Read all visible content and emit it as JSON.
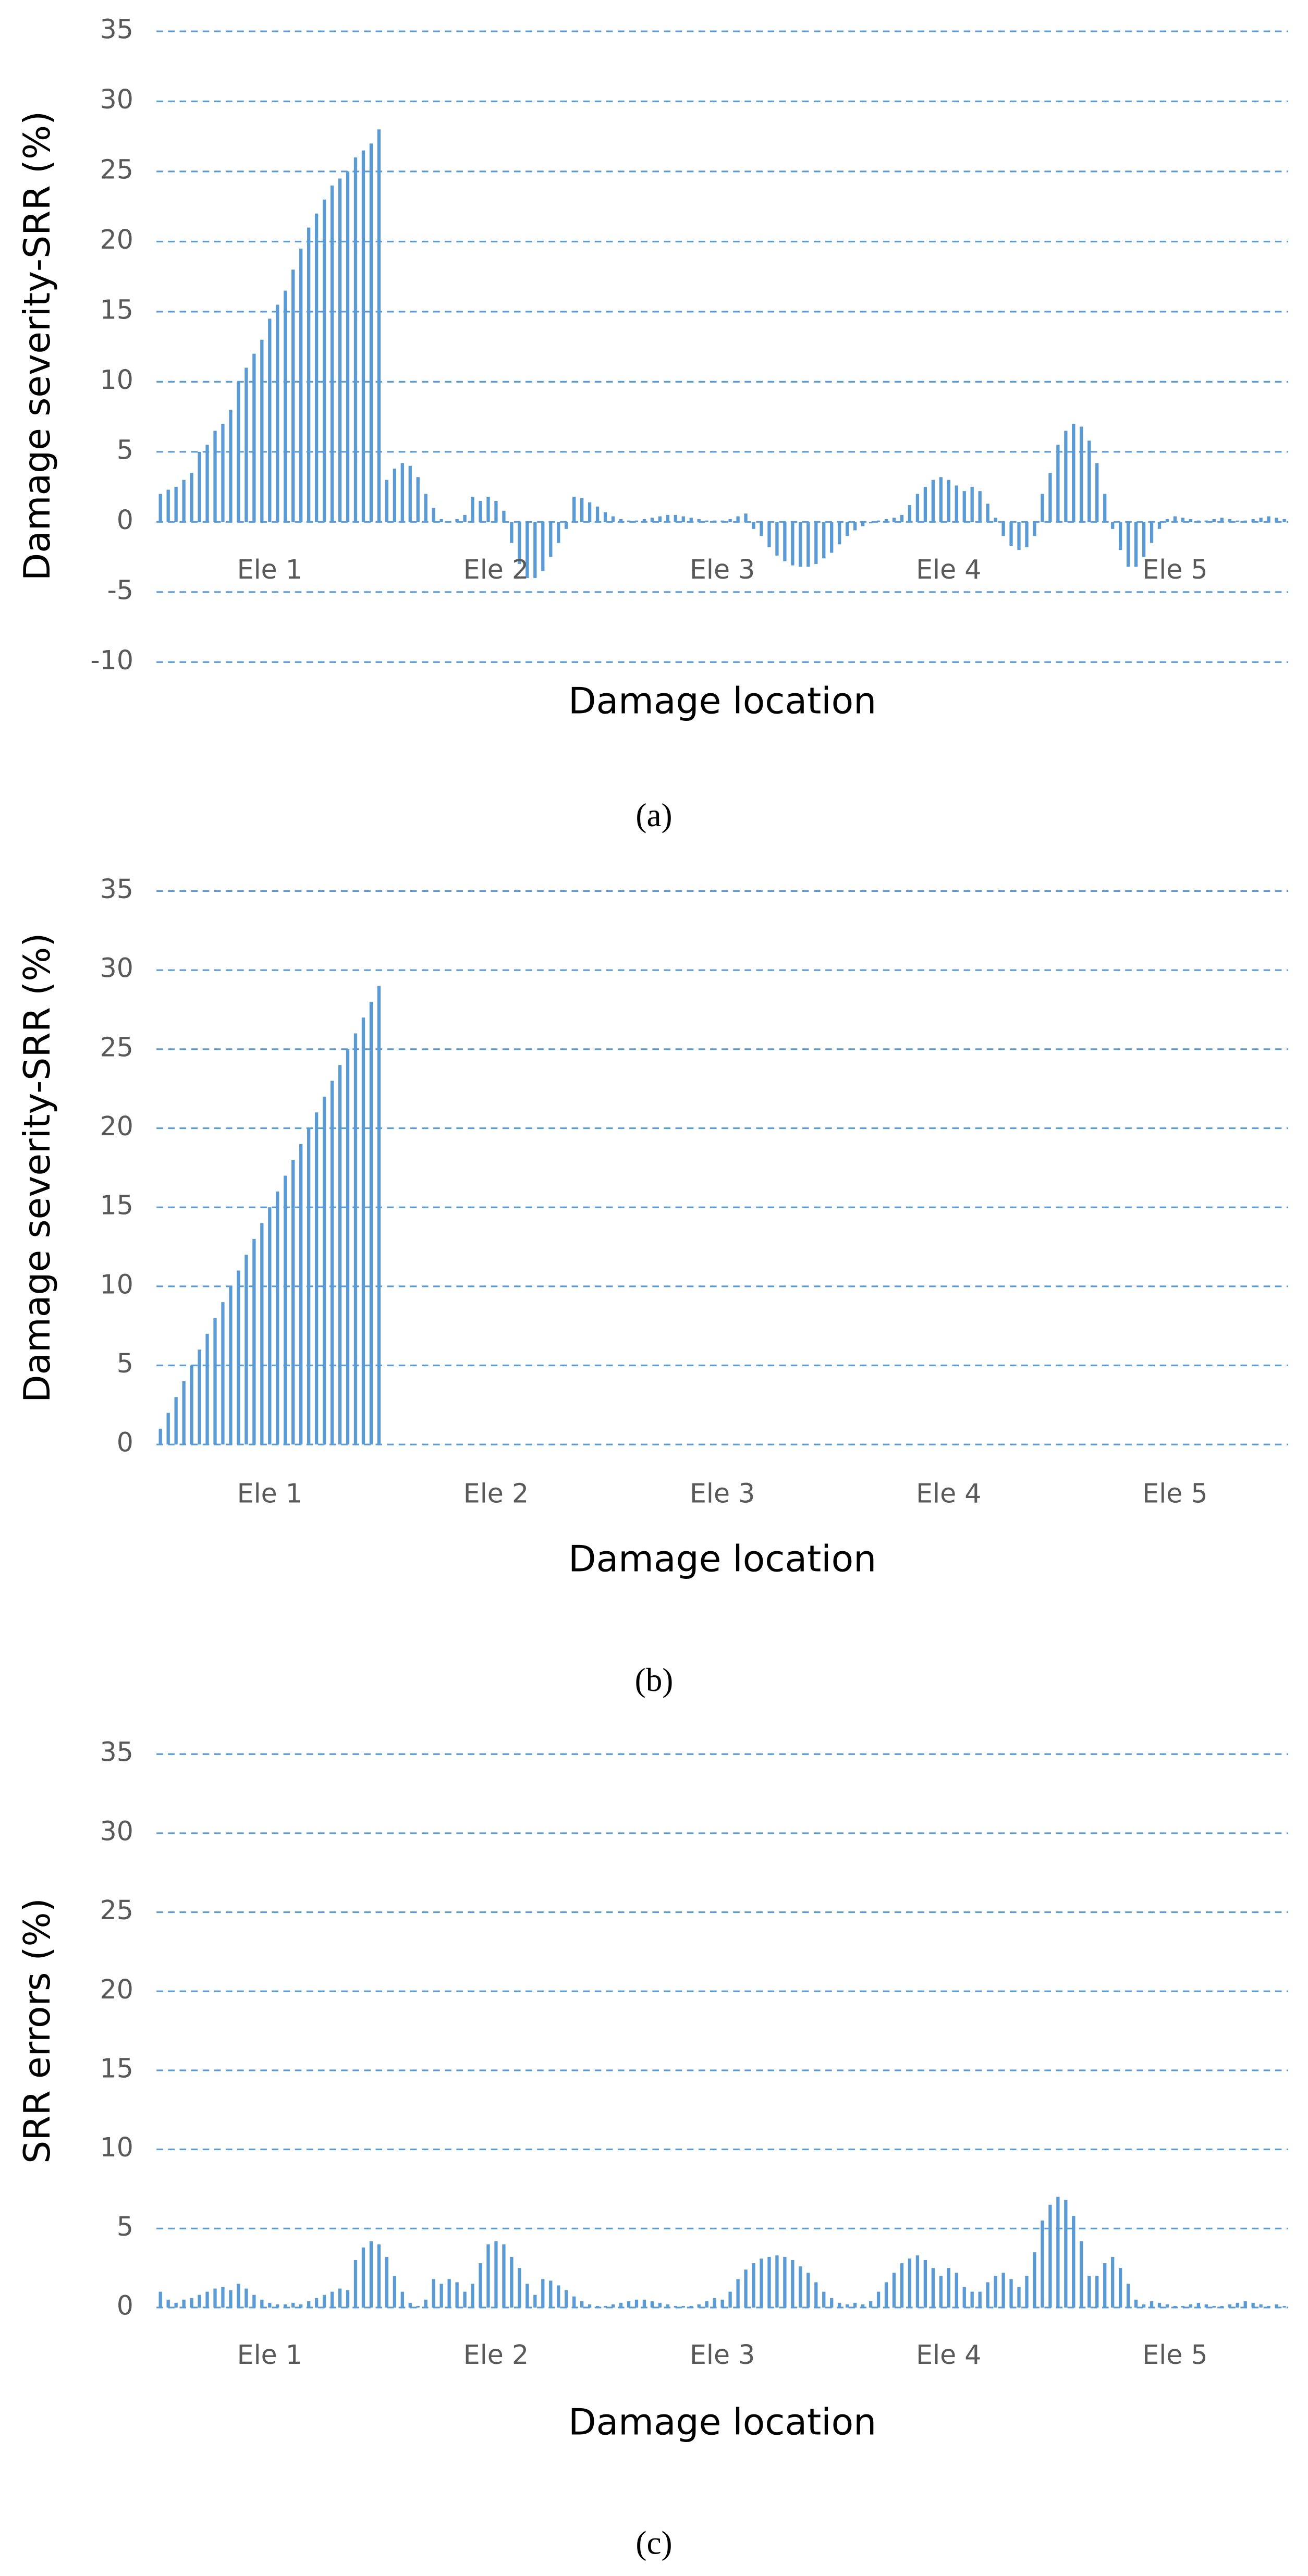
{
  "chart_data": [
    {
      "type": "bar",
      "caption": "(a)",
      "x_label": "Damage location",
      "y_label": "Damage severity-SRR (%)",
      "color": "#5b9bd5",
      "grid": true,
      "xlim": [
        0.5,
        145.5
      ],
      "xticks": [
        {
          "value": 15,
          "label": "Ele 1"
        },
        {
          "value": 44,
          "label": "Ele 2"
        },
        {
          "value": 73,
          "label": "Ele 3"
        },
        {
          "value": 102,
          "label": "Ele 4"
        },
        {
          "value": 131,
          "label": "Ele 5"
        }
      ],
      "ylim": [
        -10,
        35
      ],
      "yticks": [
        -10,
        -5,
        0,
        5,
        10,
        15,
        20,
        25,
        30,
        35
      ],
      "x": [
        1,
        2,
        3,
        4,
        5,
        6,
        7,
        8,
        9,
        10,
        11,
        12,
        13,
        14,
        15,
        16,
        17,
        18,
        19,
        20,
        21,
        22,
        23,
        24,
        25,
        26,
        27,
        28,
        29,
        30,
        31,
        32,
        33,
        34,
        35,
        36,
        37,
        38,
        39,
        40,
        41,
        42,
        43,
        44,
        45,
        46,
        47,
        48,
        49,
        50,
        51,
        52,
        53,
        54,
        55,
        56,
        57,
        58,
        59,
        60,
        61,
        62,
        63,
        64,
        65,
        66,
        67,
        68,
        69,
        70,
        71,
        72,
        73,
        74,
        75,
        76,
        77,
        78,
        79,
        80,
        81,
        82,
        83,
        84,
        85,
        86,
        87,
        88,
        89,
        90,
        91,
        92,
        93,
        94,
        95,
        96,
        97,
        98,
        99,
        100,
        101,
        102,
        103,
        104,
        105,
        106,
        107,
        108,
        109,
        110,
        111,
        112,
        113,
        114,
        115,
        116,
        117,
        118,
        119,
        120,
        121,
        122,
        123,
        124,
        125,
        126,
        127,
        128,
        129,
        130,
        131,
        132,
        133,
        134,
        135,
        136,
        137,
        138,
        139,
        140,
        141,
        142,
        143,
        144,
        145
      ],
      "values": [
        2,
        2.3,
        2.5,
        3,
        3.5,
        5,
        5.5,
        6.5,
        7,
        8,
        10,
        11,
        12,
        13,
        14.5,
        15.5,
        16.5,
        18,
        19.5,
        21,
        22,
        23,
        24,
        24.5,
        25,
        26,
        26.5,
        27,
        28,
        3,
        3.8,
        4.2,
        4,
        3.2,
        2,
        1,
        0.2,
        0,
        0.2,
        0.5,
        1.8,
        1.5,
        1.8,
        1.5,
        0.8,
        -1.5,
        -3,
        -4,
        -4,
        -3.5,
        -2.5,
        -1.5,
        -0.5,
        1.8,
        1.7,
        1.4,
        1.1,
        0.7,
        0.4,
        0.2,
        0.1,
        0.1,
        0.2,
        0.3,
        0.4,
        0.5,
        0.5,
        0.4,
        0.3,
        0.2,
        0.1,
        0.1,
        0.1,
        0.2,
        0.4,
        0.6,
        -0.5,
        -1,
        -1.8,
        -2.4,
        -2.8,
        -3.1,
        -3.2,
        -3.2,
        -3,
        -2.6,
        -2.2,
        -1.6,
        -1,
        -0.6,
        -0.3,
        -0.1,
        0.1,
        0.2,
        0.3,
        0.5,
        1.2,
        2,
        2.5,
        3,
        3.2,
        3,
        2.6,
        2.2,
        2.5,
        2.2,
        1.3,
        0.3,
        -1,
        -1.7,
        -2,
        -1.8,
        -1,
        2,
        3.5,
        5.5,
        6.5,
        7,
        6.8,
        5.8,
        4.2,
        2,
        -0.5,
        -2,
        -3.2,
        -3.2,
        -2.5,
        -1.5,
        -0.5,
        0.2,
        0.4,
        0.3,
        0.2,
        0.1,
        0.1,
        0.2,
        0.3,
        0.2,
        0.1,
        0.1,
        0.2,
        0.3,
        0.4,
        0.3,
        0.2
      ]
    },
    {
      "type": "bar",
      "caption": "(b)",
      "x_label": "Damage location",
      "y_label": "Damage severity-SRR (%)",
      "color": "#5b9bd5",
      "grid": true,
      "xlim": [
        0.5,
        145.5
      ],
      "xticks": [
        {
          "value": 15,
          "label": "Ele 1"
        },
        {
          "value": 44,
          "label": "Ele 2"
        },
        {
          "value": 73,
          "label": "Ele 3"
        },
        {
          "value": 102,
          "label": "Ele 4"
        },
        {
          "value": 131,
          "label": "Ele 5"
        }
      ],
      "ylim": [
        0,
        35
      ],
      "yticks": [
        0,
        5,
        10,
        15,
        20,
        25,
        30,
        35
      ],
      "x": [
        1,
        2,
        3,
        4,
        5,
        6,
        7,
        8,
        9,
        10,
        11,
        12,
        13,
        14,
        15,
        16,
        17,
        18,
        19,
        20,
        21,
        22,
        23,
        24,
        25,
        26,
        27,
        28,
        29,
        30,
        31,
        32,
        33,
        34,
        35,
        36,
        37,
        38,
        39,
        40,
        41,
        42,
        43,
        44,
        45,
        46,
        47,
        48,
        49,
        50,
        51,
        52,
        53,
        54,
        55,
        56,
        57,
        58,
        59,
        60,
        61,
        62,
        63,
        64,
        65,
        66,
        67,
        68,
        69,
        70,
        71,
        72,
        73,
        74,
        75,
        76,
        77,
        78,
        79,
        80,
        81,
        82,
        83,
        84,
        85,
        86,
        87,
        88,
        89,
        90,
        91,
        92,
        93,
        94,
        95,
        96,
        97,
        98,
        99,
        100,
        101,
        102,
        103,
        104,
        105,
        106,
        107,
        108,
        109,
        110,
        111,
        112,
        113,
        114,
        115,
        116,
        117,
        118,
        119,
        120,
        121,
        122,
        123,
        124,
        125,
        126,
        127,
        128,
        129,
        130,
        131,
        132,
        133,
        134,
        135,
        136,
        137,
        138,
        139,
        140,
        141,
        142,
        143,
        144,
        145
      ],
      "values": [
        1,
        2,
        3,
        4,
        5,
        6,
        7,
        8,
        9,
        10,
        11,
        12,
        13,
        14,
        15,
        16,
        17,
        18,
        19,
        20,
        21,
        22,
        23,
        24,
        25,
        26,
        27,
        28,
        29,
        0,
        0,
        0,
        0,
        0,
        0,
        0,
        0,
        0,
        0,
        0,
        0,
        0,
        0,
        0,
        0,
        0,
        0,
        0,
        0,
        0,
        0,
        0,
        0,
        0,
        0,
        0,
        0,
        0,
        0,
        0,
        0,
        0,
        0,
        0,
        0,
        0,
        0,
        0,
        0,
        0,
        0,
        0,
        0,
        0,
        0,
        0,
        0,
        0,
        0,
        0,
        0,
        0,
        0,
        0,
        0,
        0,
        0,
        0,
        0,
        0,
        0,
        0,
        0,
        0,
        0,
        0,
        0,
        0,
        0,
        0,
        0,
        0,
        0,
        0,
        0,
        0,
        0,
        0,
        0,
        0,
        0,
        0,
        0,
        0,
        0,
        0,
        0,
        0,
        0,
        0,
        0,
        0,
        0,
        0,
        0,
        0,
        0,
        0,
        0,
        0,
        0,
        0,
        0,
        0,
        0,
        0,
        0,
        0,
        0,
        0,
        0,
        0,
        0,
        0,
        0
      ]
    },
    {
      "type": "bar",
      "caption": "(c)",
      "x_label": "Damage location",
      "y_label": "SRR errors (%)",
      "color": "#5b9bd5",
      "grid": true,
      "xlim": [
        0.5,
        145.5
      ],
      "xticks": [
        {
          "value": 15,
          "label": "Ele 1"
        },
        {
          "value": 44,
          "label": "Ele 2"
        },
        {
          "value": 73,
          "label": "Ele 3"
        },
        {
          "value": 102,
          "label": "Ele 4"
        },
        {
          "value": 131,
          "label": "Ele 5"
        }
      ],
      "ylim": [
        0,
        35
      ],
      "yticks": [
        0,
        5,
        10,
        15,
        20,
        25,
        30,
        35
      ],
      "x": [
        1,
        2,
        3,
        4,
        5,
        6,
        7,
        8,
        9,
        10,
        11,
        12,
        13,
        14,
        15,
        16,
        17,
        18,
        19,
        20,
        21,
        22,
        23,
        24,
        25,
        26,
        27,
        28,
        29,
        30,
        31,
        32,
        33,
        34,
        35,
        36,
        37,
        38,
        39,
        40,
        41,
        42,
        43,
        44,
        45,
        46,
        47,
        48,
        49,
        50,
        51,
        52,
        53,
        54,
        55,
        56,
        57,
        58,
        59,
        60,
        61,
        62,
        63,
        64,
        65,
        66,
        67,
        68,
        69,
        70,
        71,
        72,
        73,
        74,
        75,
        76,
        77,
        78,
        79,
        80,
        81,
        82,
        83,
        84,
        85,
        86,
        87,
        88,
        89,
        90,
        91,
        92,
        93,
        94,
        95,
        96,
        97,
        98,
        99,
        100,
        101,
        102,
        103,
        104,
        105,
        106,
        107,
        108,
        109,
        110,
        111,
        112,
        113,
        114,
        115,
        116,
        117,
        118,
        119,
        120,
        121,
        122,
        123,
        124,
        125,
        126,
        127,
        128,
        129,
        130,
        131,
        132,
        133,
        134,
        135,
        136,
        137,
        138,
        139,
        140,
        141,
        142,
        143,
        144,
        145
      ],
      "values": [
        1,
        0.5,
        0.3,
        0.5,
        0.6,
        0.8,
        1,
        1.2,
        1.3,
        1.1,
        1.5,
        1.2,
        0.8,
        0.5,
        0.3,
        0.2,
        0.2,
        0.3,
        0.2,
        0.4,
        0.6,
        0.8,
        1,
        1.2,
        1.1,
        3,
        3.8,
        4.2,
        4,
        3.2,
        2,
        1,
        0.3,
        0.1,
        0.5,
        1.8,
        1.5,
        1.8,
        1.6,
        1,
        1.5,
        2.8,
        4,
        4.2,
        4,
        3.2,
        2.5,
        1.5,
        0.8,
        1.8,
        1.7,
        1.4,
        1.1,
        0.7,
        0.4,
        0.2,
        0.1,
        0.1,
        0.2,
        0.3,
        0.4,
        0.5,
        0.5,
        0.4,
        0.3,
        0.2,
        0.1,
        0.1,
        0.1,
        0.2,
        0.4,
        0.6,
        0.5,
        1,
        1.8,
        2.4,
        2.8,
        3.1,
        3.2,
        3.3,
        3.2,
        3,
        2.6,
        2.2,
        1.6,
        1,
        0.6,
        0.3,
        0.2,
        0.3,
        0.2,
        0.4,
        1,
        1.6,
        2.2,
        2.8,
        3.1,
        3.3,
        3,
        2.5,
        2,
        2.5,
        2.2,
        1.3,
        1,
        1,
        1.6,
        2,
        2.2,
        1.8,
        1.3,
        2,
        3.5,
        5.5,
        6.5,
        7,
        6.8,
        5.8,
        4.2,
        2,
        2,
        2.8,
        3.2,
        2.5,
        1.5,
        0.5,
        0.2,
        0.4,
        0.3,
        0.2,
        0.1,
        0.1,
        0.2,
        0.3,
        0.2,
        0.1,
        0.1,
        0.2,
        0.3,
        0.4,
        0.3,
        0.2,
        0.1,
        0.2,
        0.1
      ]
    }
  ]
}
